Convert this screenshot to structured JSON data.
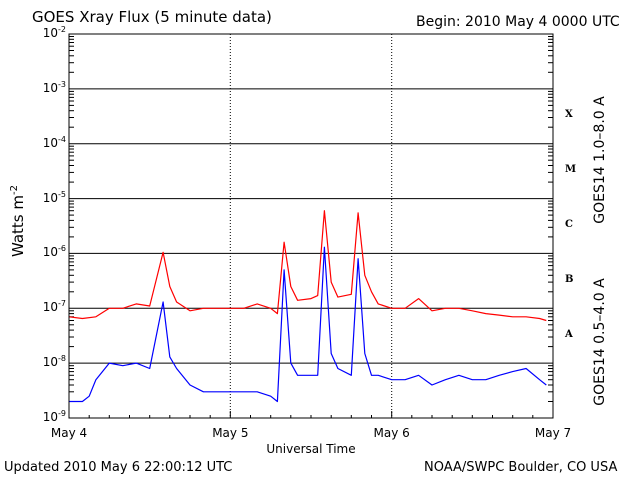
{
  "chart_data": {
    "type": "line",
    "title": "GOES Xray Flux (5 minute data)",
    "begin": "Begin:  2010 May 4 0000 UTC",
    "xlabel": "Universal Time",
    "ylabel_base": "Watts m",
    "ylabel_exp": "-2",
    "yscale": "log",
    "ylim": [
      1e-09,
      0.01
    ],
    "xlim_hours": [
      0,
      72
    ],
    "x_ticks": [
      {
        "label": "May 4",
        "hour": 0
      },
      {
        "label": "May 5",
        "hour": 24
      },
      {
        "label": "May 6",
        "hour": 48
      },
      {
        "label": "May 7",
        "hour": 72
      }
    ],
    "y_ticks": [
      {
        "base": "10",
        "exp": "-2",
        "value": 0.01
      },
      {
        "base": "10",
        "exp": "-3",
        "value": 0.001
      },
      {
        "base": "10",
        "exp": "-4",
        "value": 0.0001
      },
      {
        "base": "10",
        "exp": "-5",
        "value": 1e-05
      },
      {
        "base": "10",
        "exp": "-6",
        "value": 1e-06
      },
      {
        "base": "10",
        "exp": "-7",
        "value": 1e-07
      },
      {
        "base": "10",
        "exp": "-8",
        "value": 1e-08
      },
      {
        "base": "10",
        "exp": "-9",
        "value": 1e-09
      }
    ],
    "flare_classes": [
      {
        "label": "X",
        "value": 0.000316
      },
      {
        "label": "M",
        "value": 3.16e-05
      },
      {
        "label": "C",
        "value": 3.16e-06
      },
      {
        "label": "B",
        "value": 3.16e-07
      },
      {
        "label": "A",
        "value": 3.16e-08
      }
    ],
    "grid": true,
    "series": [
      {
        "name": "GOES14 1.0–8.0 A",
        "color": "#ff0000",
        "points": [
          [
            0,
            7e-08
          ],
          [
            2,
            6.5e-08
          ],
          [
            4,
            7e-08
          ],
          [
            6,
            1e-07
          ],
          [
            8,
            1e-07
          ],
          [
            10,
            1.2e-07
          ],
          [
            12,
            1.1e-07
          ],
          [
            14,
            1.05e-06
          ],
          [
            15,
            2.5e-07
          ],
          [
            16,
            1.3e-07
          ],
          [
            18,
            9e-08
          ],
          [
            20,
            1e-07
          ],
          [
            22,
            1e-07
          ],
          [
            24,
            1e-07
          ],
          [
            26,
            1e-07
          ],
          [
            28,
            1.2e-07
          ],
          [
            30,
            1e-07
          ],
          [
            31,
            8e-08
          ],
          [
            32,
            1.6e-06
          ],
          [
            33,
            2.5e-07
          ],
          [
            34,
            1.4e-07
          ],
          [
            36,
            1.5e-07
          ],
          [
            37,
            1.7e-07
          ],
          [
            38,
            6e-06
          ],
          [
            39,
            3e-07
          ],
          [
            40,
            1.6e-07
          ],
          [
            42,
            1.8e-07
          ],
          [
            43,
            5.5e-06
          ],
          [
            44,
            4e-07
          ],
          [
            45,
            2e-07
          ],
          [
            46,
            1.2e-07
          ],
          [
            48,
            1e-07
          ],
          [
            50,
            1e-07
          ],
          [
            52,
            1.5e-07
          ],
          [
            54,
            9e-08
          ],
          [
            56,
            1e-07
          ],
          [
            58,
            1e-07
          ],
          [
            60,
            9e-08
          ],
          [
            62,
            8e-08
          ],
          [
            64,
            7.5e-08
          ],
          [
            66,
            7e-08
          ],
          [
            68,
            7e-08
          ],
          [
            70,
            6.5e-08
          ],
          [
            71,
            6e-08
          ]
        ]
      },
      {
        "name": "GOES14 0.5–4.0 A",
        "color": "#0000ff",
        "points": [
          [
            0,
            2e-09
          ],
          [
            2,
            2e-09
          ],
          [
            3,
            2.5e-09
          ],
          [
            4,
            5e-09
          ],
          [
            6,
            1e-08
          ],
          [
            8,
            9e-09
          ],
          [
            10,
            1e-08
          ],
          [
            12,
            8e-09
          ],
          [
            14,
            1.3e-07
          ],
          [
            15,
            1.3e-08
          ],
          [
            16,
            8e-09
          ],
          [
            18,
            4e-09
          ],
          [
            20,
            3e-09
          ],
          [
            22,
            3e-09
          ],
          [
            24,
            3e-09
          ],
          [
            26,
            3e-09
          ],
          [
            28,
            3e-09
          ],
          [
            30,
            2.5e-09
          ],
          [
            31,
            2e-09
          ],
          [
            32,
            5e-07
          ],
          [
            33,
            1e-08
          ],
          [
            34,
            6e-09
          ],
          [
            36,
            6e-09
          ],
          [
            37,
            6e-09
          ],
          [
            38,
            1.3e-06
          ],
          [
            39,
            1.5e-08
          ],
          [
            40,
            8e-09
          ],
          [
            42,
            6e-09
          ],
          [
            43,
            8e-07
          ],
          [
            44,
            1.5e-08
          ],
          [
            45,
            6e-09
          ],
          [
            46,
            6e-09
          ],
          [
            48,
            5e-09
          ],
          [
            50,
            5e-09
          ],
          [
            52,
            6e-09
          ],
          [
            54,
            4e-09
          ],
          [
            56,
            5e-09
          ],
          [
            58,
            6e-09
          ],
          [
            60,
            5e-09
          ],
          [
            62,
            5e-09
          ],
          [
            64,
            6e-09
          ],
          [
            66,
            7e-09
          ],
          [
            68,
            8e-09
          ],
          [
            70,
            5e-09
          ],
          [
            71,
            4e-09
          ]
        ]
      }
    ]
  },
  "footer": {
    "updated": "Updated 2010 May  6 22:00:12 UTC",
    "source": "NOAA/SWPC Boulder, CO USA"
  }
}
